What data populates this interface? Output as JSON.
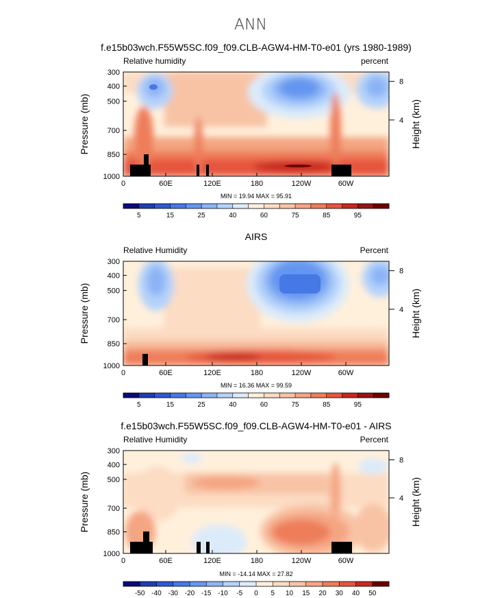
{
  "suptitle": "ANN",
  "chart_data": [
    {
      "type": "heatmap",
      "title": "f.e15b03wch.F55W5SC.f09_f09.CLB-AGW4-HM-T0-e01 (yrs 1980-1989)",
      "left_label": "Relative humidity",
      "right_label": "percent",
      "ylabel": "Pressure (mb)",
      "y2label": "Height (km)",
      "x_ticks": [
        "0",
        "60E",
        "120E",
        "180",
        "120W",
        "60W"
      ],
      "y_ticks": [
        "300",
        "400",
        "500",
        "700",
        "850",
        "1000"
      ],
      "y2_ticks": [
        "8",
        "4"
      ],
      "stats": "MIN =   19.94   MAX =   95.91",
      "colorbar_labels": [
        "5",
        "15",
        "25",
        "40",
        "60",
        "75",
        "85",
        "95"
      ],
      "colors": [
        "#0a0a78",
        "#1e3cb4",
        "#2d5ad2",
        "#4678e6",
        "#6496f0",
        "#8cb4f5",
        "#b4d2fa",
        "#dcebfa",
        "#fff0dc",
        "#fcdcc3",
        "#f8c3a5",
        "#f4a582",
        "#ee7d5a",
        "#e6553c",
        "#c8281e",
        "#961414",
        "#6e0000"
      ],
      "min": 19.94,
      "max": 95.91
    },
    {
      "type": "heatmap",
      "title": "AIRS",
      "left_label": "Relative Humidity",
      "right_label": "Percent",
      "ylabel": "Pressure (mb)",
      "y2label": "Height (km)",
      "x_ticks": [
        "0",
        "60E",
        "120E",
        "180",
        "120W",
        "60W"
      ],
      "y_ticks": [
        "300",
        "400",
        "500",
        "700",
        "850",
        "1000"
      ],
      "y2_ticks": [
        "8",
        "4"
      ],
      "stats": "MIN =   16.36   MAX =   99.59",
      "colorbar_labels": [
        "5",
        "15",
        "25",
        "40",
        "60",
        "75",
        "85",
        "95"
      ],
      "colors": [
        "#0a0a78",
        "#1e3cb4",
        "#2d5ad2",
        "#4678e6",
        "#6496f0",
        "#8cb4f5",
        "#b4d2fa",
        "#dcebfa",
        "#fff0dc",
        "#fcdcc3",
        "#f8c3a5",
        "#f4a582",
        "#ee7d5a",
        "#e6553c",
        "#c8281e",
        "#961414",
        "#6e0000"
      ],
      "min": 16.36,
      "max": 99.59
    },
    {
      "type": "heatmap",
      "title": "f.e15b03wch.F55W5SC.f09_f09.CLB-AGW4-HM-T0-e01 - AIRS",
      "left_label": "Relative Humidity",
      "right_label": "Percent",
      "ylabel": "Pressure (mb)",
      "y2label": "Height (km)",
      "x_ticks": [
        "0",
        "60E",
        "120E",
        "180",
        "120W",
        "60W"
      ],
      "y_ticks": [
        "300",
        "400",
        "500",
        "700",
        "850",
        "1000"
      ],
      "y2_ticks": [
        "8",
        "4"
      ],
      "stats": "MIN = -14.14   MAX =   27.82",
      "colorbar_labels": [
        "-50",
        "-40",
        "-30",
        "-20",
        "-15",
        "-10",
        "-5",
        "0",
        "5",
        "10",
        "15",
        "20",
        "30",
        "40",
        "50"
      ],
      "colors": [
        "#0a0a78",
        "#1e3cb4",
        "#2d5ad2",
        "#4678e6",
        "#6496f0",
        "#8cb4f5",
        "#b4d2fa",
        "#dcebfa",
        "#fff0dc",
        "#fcdcc3",
        "#f8c3a5",
        "#f4a582",
        "#ee7d5a",
        "#e6553c",
        "#c8281e",
        "#6e0000"
      ],
      "min": -14.14,
      "max": 27.82
    }
  ]
}
